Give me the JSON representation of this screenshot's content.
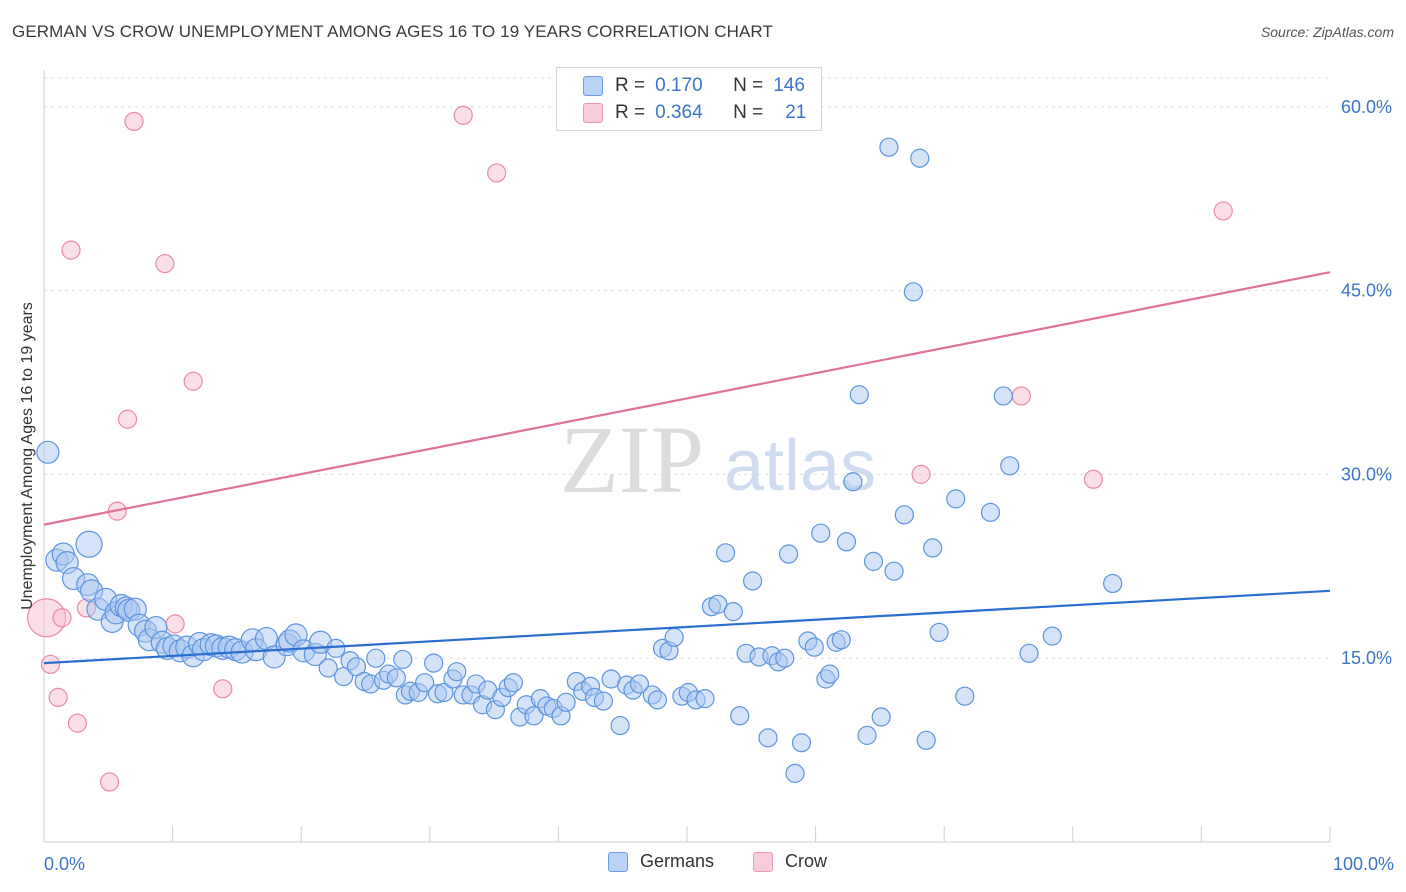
{
  "header": {
    "title": "GERMAN VS CROW UNEMPLOYMENT AMONG AGES 16 TO 19 YEARS CORRELATION CHART",
    "source": "Source: ZipAtlas.com"
  },
  "watermark": {
    "zip": "ZIP",
    "atlas": "atlas"
  },
  "legend": {
    "r_label": "R =",
    "n_label": "N =",
    "items": [
      {
        "r": "0.170",
        "n": "146"
      },
      {
        "r": "0.364",
        "n": "21"
      }
    ]
  },
  "colors": {
    "german_fill": "#a9c8f2",
    "german_stroke": "#5d95de",
    "german_line": "#2a6fd0",
    "crow_fill": "#f7bfd0",
    "crow_stroke": "#e88aa8",
    "crow_line": "#e0729a",
    "axis_label": "#3b74c9",
    "grid": "#dddddd"
  },
  "chart_data": {
    "type": "scatter",
    "title": "GERMAN VS CROW UNEMPLOYMENT AMONG AGES 16 TO 19 YEARS CORRELATION CHART",
    "xlabel": "",
    "ylabel": "Unemployment Among Ages 16 to 19 years",
    "xlim": [
      0,
      100
    ],
    "ylim": [
      0,
      63
    ],
    "x_tick_labels": [
      "0.0%",
      "100.0%"
    ],
    "y_ticks": [
      15,
      30,
      45,
      60
    ],
    "y_tick_labels": [
      "15.0%",
      "30.0%",
      "45.0%",
      "60.0%"
    ],
    "grid": true,
    "legend_placement": "top-center",
    "series": [
      {
        "name": "Germans",
        "r": 0.17,
        "n": 146,
        "trendline": {
          "x": [
            0,
            100
          ],
          "y": [
            14.6,
            20.5
          ]
        },
        "points": [
          [
            0.3,
            31.8,
            11
          ],
          [
            1,
            23,
            11
          ],
          [
            1.5,
            23.5,
            11
          ],
          [
            1.8,
            22.8,
            11
          ],
          [
            2.3,
            21.5,
            11
          ],
          [
            3.5,
            24.3,
            13
          ],
          [
            3.4,
            21,
            11
          ],
          [
            3.7,
            20.5,
            11
          ],
          [
            4.2,
            19,
            11
          ],
          [
            4.8,
            19.8,
            11
          ],
          [
            5.3,
            18,
            11
          ],
          [
            5.6,
            18.7,
            11
          ],
          [
            6,
            19.3,
            11
          ],
          [
            6.4,
            19.1,
            11
          ],
          [
            6.6,
            18.9,
            11
          ],
          [
            7.1,
            19,
            11
          ],
          [
            7.4,
            17.7,
            11
          ],
          [
            7.9,
            17.2,
            11
          ],
          [
            8.2,
            16.5,
            11
          ],
          [
            8.7,
            17.5,
            11
          ],
          [
            9.2,
            16.3,
            11
          ],
          [
            9.6,
            15.8,
            11
          ],
          [
            10.1,
            16,
            11
          ],
          [
            10.6,
            15.6,
            11
          ],
          [
            11.1,
            15.9,
            11
          ],
          [
            11.6,
            15.2,
            11
          ],
          [
            12.1,
            16.2,
            11
          ],
          [
            12.4,
            15.7,
            11
          ],
          [
            13,
            16.1,
            11
          ],
          [
            13.4,
            16,
            11
          ],
          [
            13.9,
            15.8,
            11
          ],
          [
            14.4,
            15.9,
            11
          ],
          [
            14.9,
            15.7,
            11
          ],
          [
            15.4,
            15.5,
            11
          ],
          [
            16.2,
            16.5,
            11
          ],
          [
            16.5,
            15.7,
            11
          ],
          [
            17.3,
            16.6,
            11
          ],
          [
            17.9,
            15.1,
            11
          ],
          [
            18.9,
            16.1,
            11
          ],
          [
            19.1,
            16.4,
            11
          ],
          [
            19.6,
            16.9,
            11
          ],
          [
            20.2,
            15.6,
            11
          ],
          [
            21.1,
            15.3,
            11
          ],
          [
            21.5,
            16.3,
            11
          ],
          [
            22.1,
            14.2,
            9
          ],
          [
            22.7,
            15.8,
            9
          ],
          [
            23.3,
            13.5,
            9
          ],
          [
            23.8,
            14.8,
            9
          ],
          [
            24.3,
            14.3,
            9
          ],
          [
            24.9,
            13.1,
            9
          ],
          [
            25.4,
            12.9,
            9
          ],
          [
            25.8,
            15,
            9
          ],
          [
            26.4,
            13.2,
            9
          ],
          [
            26.8,
            13.7,
            9
          ],
          [
            27.4,
            13.4,
            9
          ],
          [
            27.9,
            14.9,
            9
          ],
          [
            28.1,
            12,
            9
          ],
          [
            28.5,
            12.3,
            9
          ],
          [
            29.1,
            12.2,
            9
          ],
          [
            29.6,
            13,
            9
          ],
          [
            30.3,
            14.6,
            9
          ],
          [
            30.6,
            12.1,
            9
          ],
          [
            31.1,
            12.2,
            9
          ],
          [
            31.8,
            13.3,
            9
          ],
          [
            32.1,
            13.9,
            9
          ],
          [
            32.6,
            12,
            9
          ],
          [
            33.2,
            12,
            9
          ],
          [
            33.6,
            12.9,
            9
          ],
          [
            34.1,
            11.2,
            9
          ],
          [
            34.5,
            12.4,
            9
          ],
          [
            35.1,
            10.8,
            9
          ],
          [
            35.6,
            11.8,
            9
          ],
          [
            36.1,
            12.6,
            9
          ],
          [
            36.5,
            13,
            9
          ],
          [
            37,
            10.2,
            9
          ],
          [
            37.5,
            11.2,
            9
          ],
          [
            38.1,
            10.3,
            9
          ],
          [
            38.6,
            11.7,
            9
          ],
          [
            39.1,
            11.1,
            9
          ],
          [
            39.6,
            10.9,
            9
          ],
          [
            40.2,
            10.3,
            9
          ],
          [
            40.6,
            11.4,
            9
          ],
          [
            41.4,
            13.1,
            9
          ],
          [
            41.9,
            12.3,
            9
          ],
          [
            42.5,
            12.7,
            9
          ],
          [
            42.8,
            11.8,
            9
          ],
          [
            43.5,
            11.5,
            9
          ],
          [
            44.1,
            13.3,
            9
          ],
          [
            44.8,
            9.5,
            9
          ],
          [
            45.3,
            12.8,
            9
          ],
          [
            45.8,
            12.4,
            9
          ],
          [
            46.3,
            12.9,
            9
          ],
          [
            47.3,
            12,
            9
          ],
          [
            47.7,
            11.6,
            9
          ],
          [
            48.1,
            15.8,
            9
          ],
          [
            48.6,
            15.6,
            9
          ],
          [
            49,
            16.7,
            9
          ],
          [
            49.6,
            11.9,
            9
          ],
          [
            50.1,
            12.2,
            9
          ],
          [
            50.7,
            11.6,
            9
          ],
          [
            51.4,
            11.7,
            9
          ],
          [
            51.9,
            19.2,
            9
          ],
          [
            52.4,
            19.4,
            9
          ],
          [
            53,
            23.6,
            9
          ],
          [
            53.6,
            18.8,
            9
          ],
          [
            54.1,
            10.3,
            9
          ],
          [
            54.6,
            15.4,
            9
          ],
          [
            55.1,
            21.3,
            9
          ],
          [
            55.6,
            15.1,
            9
          ],
          [
            56.3,
            8.5,
            9
          ],
          [
            56.6,
            15.2,
            9
          ],
          [
            57.1,
            14.7,
            9
          ],
          [
            57.6,
            15,
            9
          ],
          [
            57.9,
            23.5,
            9
          ],
          [
            58.4,
            5.6,
            9
          ],
          [
            58.9,
            8.1,
            9
          ],
          [
            59.4,
            16.4,
            9
          ],
          [
            59.9,
            15.9,
            9
          ],
          [
            60.4,
            25.2,
            9
          ],
          [
            60.8,
            13.3,
            9
          ],
          [
            61.1,
            13.7,
            9
          ],
          [
            61.6,
            16.3,
            9
          ],
          [
            62,
            16.5,
            9
          ],
          [
            62.4,
            24.5,
            9
          ],
          [
            62.9,
            29.4,
            9
          ],
          [
            63.4,
            36.5,
            9
          ],
          [
            64,
            8.7,
            9
          ],
          [
            64.5,
            22.9,
            9
          ],
          [
            65.1,
            10.2,
            9
          ],
          [
            65.7,
            56.7,
            9
          ],
          [
            66.1,
            22.1,
            9
          ],
          [
            66.9,
            26.7,
            9
          ],
          [
            67.6,
            44.9,
            9
          ],
          [
            68.1,
            55.8,
            9
          ],
          [
            68.6,
            8.3,
            9
          ],
          [
            69.1,
            24,
            9
          ],
          [
            69.6,
            17.1,
            9
          ],
          [
            70.9,
            28,
            9
          ],
          [
            71.6,
            11.9,
            9
          ],
          [
            73.6,
            26.9,
            9
          ],
          [
            74.6,
            36.4,
            9
          ],
          [
            75.1,
            30.7,
            9
          ],
          [
            76.6,
            15.4,
            9
          ],
          [
            78.4,
            16.8,
            9
          ],
          [
            83.1,
            21.1,
            9
          ]
        ]
      },
      {
        "name": "Crow",
        "r": 0.364,
        "n": 21,
        "trendline": {
          "x": [
            0,
            100
          ],
          "y": [
            25.9,
            46.5
          ]
        },
        "points": [
          [
            0.2,
            18.3,
            19
          ],
          [
            0.5,
            14.5,
            9
          ],
          [
            1.1,
            11.8,
            9
          ],
          [
            1.4,
            18.3,
            9
          ],
          [
            2.1,
            48.3,
            9
          ],
          [
            2.6,
            9.7,
            9
          ],
          [
            3.3,
            19.1,
            9
          ],
          [
            5.1,
            4.9,
            9
          ],
          [
            5.7,
            27,
            9
          ],
          [
            6.5,
            34.5,
            9
          ],
          [
            7,
            58.8,
            9
          ],
          [
            9.4,
            47.2,
            9
          ],
          [
            10.2,
            17.8,
            9
          ],
          [
            11.6,
            37.6,
            9
          ],
          [
            13.9,
            12.5,
            9
          ],
          [
            32.6,
            59.3,
            9
          ],
          [
            35.2,
            54.6,
            9
          ],
          [
            68.2,
            30,
            9
          ],
          [
            76,
            36.4,
            9
          ],
          [
            81.6,
            29.6,
            9
          ],
          [
            91.7,
            51.5,
            9
          ]
        ]
      }
    ]
  }
}
